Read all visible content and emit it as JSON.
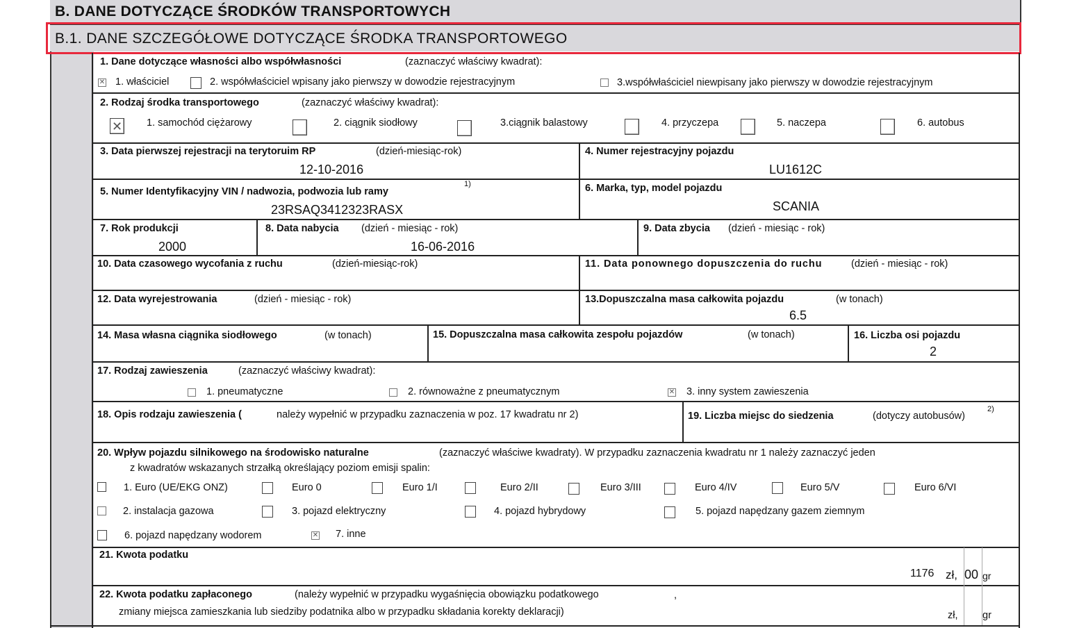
{
  "section_b": {
    "title": "B. DANE DOTYCZĄCE ŚRODKÓW TRANSPORTOWYCH"
  },
  "section_b1": {
    "title": "B.1. DANE SZCZEGÓŁOWE DOTYCZĄCE ŚRODKA TRANSPORTOWEGO",
    "highlight_color": "#e8283c"
  },
  "f1": {
    "label": "1. Dane dotyczące własności albo współwłasności",
    "hint": "(zaznaczyć właściwy kwadrat):",
    "options": [
      {
        "label": "1. właściciel",
        "checked": true
      },
      {
        "label": "2. współwłaściciel wpisany jako pierwszy w dowodzie rejestracyjnym",
        "checked": false
      },
      {
        "label": "3.współwłaściciel niewpisany jako pierwszy w dowodzie rejestracyjnym",
        "checked": false
      }
    ]
  },
  "f2": {
    "label": "2. Rodzaj środka transportowego",
    "hint": "(zaznaczyć właściwy kwadrat):",
    "options": [
      {
        "label": "1. samochód ciężarowy",
        "checked": true
      },
      {
        "label": "2. ciągnik siodłowy",
        "checked": false
      },
      {
        "label": "3.ciągnik balastowy",
        "checked": false
      },
      {
        "label": "4. przyczepa",
        "checked": false
      },
      {
        "label": "5. naczepa",
        "checked": false
      },
      {
        "label": "6. autobus",
        "checked": false
      }
    ]
  },
  "f3": {
    "label": "3. Data pierwszej rejestracji na terytoruim  RP",
    "hint": "(dzień-miesiąc-rok)",
    "value": "12-10-2016"
  },
  "f4": {
    "label": "4. Numer rejestracyjny pojazdu",
    "value": "LU1612C"
  },
  "f5": {
    "label": "5. Numer Identyfikacyjny VIN / nadwozia, podwozia lub ramy",
    "footnote": "1)",
    "value": "23RSAQ3412323RASX"
  },
  "f6": {
    "label": "6. Marka, typ, model pojazdu",
    "value": "SCANIA"
  },
  "f7": {
    "label": "7. Rok produkcji",
    "value": "2000"
  },
  "f8": {
    "label": "8. Data nabycia",
    "hint": "(dzień - miesiąc - rok)",
    "value": "16-06-2016"
  },
  "f9": {
    "label": "9. Data zbycia",
    "hint": "(dzień - miesiąc - rok)"
  },
  "f10": {
    "label": "10. Data czasowego wycofania z ruchu",
    "hint": "(dzień-miesiąc-rok)"
  },
  "f11": {
    "label": "11. Data ponownego dopuszczenia do ruchu",
    "hint": "(dzień - miesiąc - rok)"
  },
  "f12": {
    "label": "12. Data wyrejestrowania",
    "hint": "(dzień - miesiąc - rok)"
  },
  "f13": {
    "label": "13.Dopuszczalna masa całkowita pojazdu",
    "hint": "(w tonach)",
    "value": "6.5"
  },
  "f14": {
    "label": "14. Masa własna ciągnika siodłowego",
    "hint": "(w tonach)"
  },
  "f15": {
    "label": "15. Dopuszczalna masa całkowita zespołu pojazdów",
    "hint": "(w  tonach)"
  },
  "f16": {
    "label": "16. Liczba osi pojazdu",
    "value": "2"
  },
  "f17": {
    "label": "17. Rodzaj zawieszenia",
    "hint": "(zaznaczyć właściwy kwadrat):",
    "options": [
      {
        "label": "1. pneumatyczne",
        "checked": false
      },
      {
        "label": "2. równoważne z pneumatycznym",
        "checked": false
      },
      {
        "label": "3. inny system zawieszenia",
        "checked": true
      }
    ]
  },
  "f18": {
    "label": "18. Opis rodzaju zawieszenia (",
    "hint": "należy wypełnić w przypadku zaznaczenia w poz. 17 kwadratu nr 2)"
  },
  "f19": {
    "label": "19. Liczba miejsc do siedzenia",
    "hint": "(dotyczy autobusów)",
    "footnote": "2)"
  },
  "f20": {
    "label": "20. Wpływ pojazdu silnikowego na środowisko naturalne",
    "hint": "(zaznaczyć właściwe kwadraty). W przypadku zaznaczenia kwadratu nr 1 należy zaznaczyć jeden",
    "hint2": "z kwadratów wskazanych strzałką określający poziom emisji spalin:",
    "options": [
      {
        "label": "1. Euro (UE/EKG ONZ)",
        "checked": false
      },
      {
        "label": "Euro 0",
        "checked": false
      },
      {
        "label": "Euro 1/I",
        "checked": false
      },
      {
        "label": "Euro 2/II",
        "checked": false
      },
      {
        "label": "Euro 3/III",
        "checked": false
      },
      {
        "label": "Euro 4/IV",
        "checked": false
      },
      {
        "label": "Euro 5/V",
        "checked": false
      },
      {
        "label": "Euro 6/VI",
        "checked": false
      },
      {
        "label": "2. instalacja gazowa",
        "checked": false
      },
      {
        "label": "3. pojazd elektryczny",
        "checked": false
      },
      {
        "label": "4. pojazd  hybrydowy",
        "checked": false
      },
      {
        "label": "5. pojazd napędzany gazem ziemnym",
        "checked": false
      },
      {
        "label": "6. pojazd napędzany wodorem",
        "checked": false
      },
      {
        "label": "7. inne",
        "checked": true
      }
    ]
  },
  "f21": {
    "label": "21. Kwota podatku",
    "zl_value": "1176",
    "zl_unit": "zł,",
    "gr_value": "00",
    "gr_unit": "gr"
  },
  "f22": {
    "label": "22. Kwota podatku zapłaconego",
    "hint": "(należy wypełnić w przypadku wygaśnięcia obowiązku podatkowego",
    "comma": ",",
    "hint2": "zmiany miejsca zamieszkania lub siedziby podatnika albo w przypadku składania korekty deklaracji)",
    "zl_unit": "zł,",
    "gr_unit": "gr"
  }
}
